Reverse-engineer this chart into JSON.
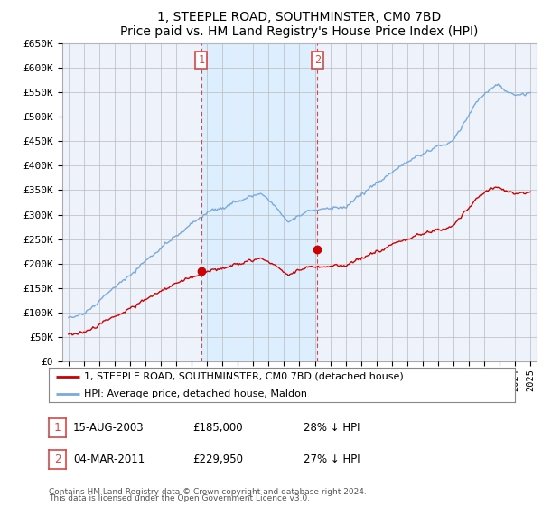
{
  "title": "1, STEEPLE ROAD, SOUTHMINSTER, CM0 7BD",
  "subtitle": "Price paid vs. HM Land Registry's House Price Index (HPI)",
  "ylim": [
    0,
    650000
  ],
  "yticks": [
    0,
    50000,
    100000,
    150000,
    200000,
    250000,
    300000,
    350000,
    400000,
    450000,
    500000,
    550000,
    600000,
    650000
  ],
  "ytick_labels": [
    "£0",
    "£50K",
    "£100K",
    "£150K",
    "£200K",
    "£250K",
    "£300K",
    "£350K",
    "£400K",
    "£450K",
    "£500K",
    "£550K",
    "£600K",
    "£650K"
  ],
  "hpi_color": "#78aadc",
  "price_color": "#cc0000",
  "vline_color": "#dd4444",
  "shade_color": "#ddeeff",
  "bg_color": "#eef2fb",
  "grid_color": "#bbbbbb",
  "t1_year": 2003.62,
  "t1_price": 185000,
  "t1_label": "1",
  "t2_year": 2011.17,
  "t2_price": 229950,
  "t2_label": "2",
  "legend_label_red": "1, STEEPLE ROAD, SOUTHMINSTER, CM0 7BD (detached house)",
  "legend_label_blue": "HPI: Average price, detached house, Maldon",
  "footer1": "Contains HM Land Registry data © Crown copyright and database right 2024.",
  "footer2": "This data is licensed under the Open Government Licence v3.0.",
  "note1_label": "1",
  "note1_date": "15-AUG-2003",
  "note1_price": "£185,000",
  "note1_hpi": "28% ↓ HPI",
  "note2_label": "2",
  "note2_date": "04-MAR-2011",
  "note2_price": "£229,950",
  "note2_hpi": "27% ↓ HPI"
}
